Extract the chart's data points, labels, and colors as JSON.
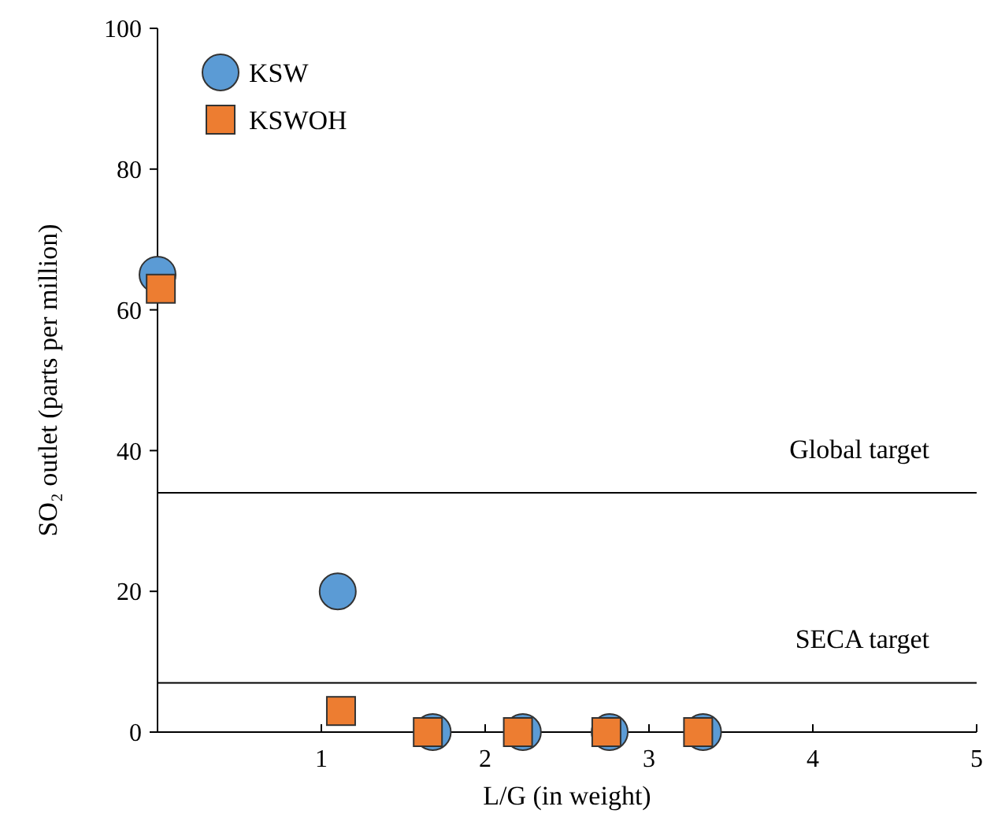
{
  "chart_data": {
    "type": "scatter",
    "xlabel": "L/G (in weight)",
    "ylabel": "SO₂ outlet (parts per million)",
    "xlim": [
      0,
      5
    ],
    "xticks": [
      1,
      2,
      3,
      4,
      5
    ],
    "ylim": [
      0,
      100
    ],
    "yticks": [
      0,
      20,
      40,
      60,
      80,
      100
    ],
    "grid": false,
    "legend": "top left",
    "series": [
      {
        "name": "KSW",
        "color": "#5b9bd5",
        "marker": "circle",
        "x": [
          0,
          1.1,
          1.68,
          2.23,
          2.76,
          3.33
        ],
        "values": [
          65,
          20,
          0,
          0,
          0,
          0
        ]
      },
      {
        "name": "KSWOH",
        "color": "#ed7d31",
        "marker": "square",
        "x": [
          0.02,
          1.12,
          1.65,
          2.2,
          2.74,
          3.3
        ],
        "values": [
          63,
          3,
          0,
          0,
          0,
          0
        ]
      }
    ],
    "ref_lines": [
      {
        "axis": "y",
        "value": 34,
        "label": "Global target",
        "color": "#000000"
      },
      {
        "axis": "y",
        "value": 7,
        "label": "SECA target",
        "color": "#000000"
      }
    ]
  }
}
